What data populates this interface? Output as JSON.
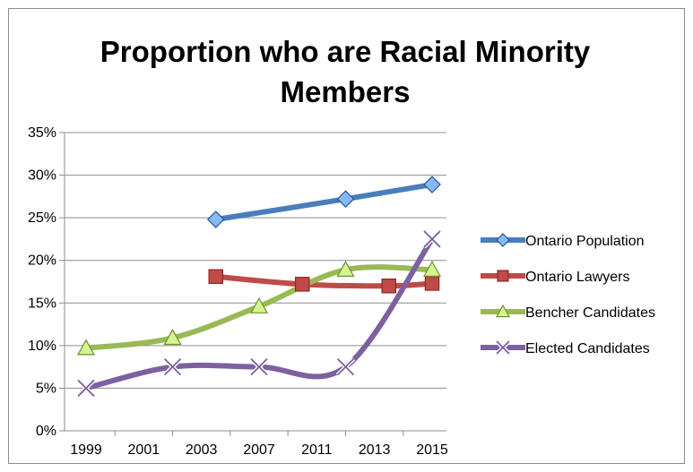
{
  "chart_data": {
    "type": "line",
    "title": "Proportion who are Racial Minority Members",
    "xlabel": "",
    "ylabel": "",
    "x_tick_labels": [
      "1999",
      "2001",
      "2003",
      "2007",
      "2011",
      "2013",
      "2015"
    ],
    "y_tick_labels": [
      "0%",
      "5%",
      "10%",
      "15%",
      "20%",
      "25%",
      "30%",
      "35%"
    ],
    "ylim": [
      0,
      35
    ],
    "grid": "horizontal",
    "legend_position": "right",
    "series": [
      {
        "name": "Ontario Population",
        "color": "#4a7ebb",
        "marker": "diamond",
        "points": [
          {
            "x": 2005,
            "y": 24.8
          },
          {
            "x": 2011,
            "y": 27.2
          },
          {
            "x": 2015,
            "y": 28.9
          }
        ]
      },
      {
        "name": "Ontario Lawyers",
        "color": "#be4b48",
        "marker": "square",
        "points": [
          {
            "x": 2005,
            "y": 18.1
          },
          {
            "x": 2009,
            "y": 17.2
          },
          {
            "x": 2013,
            "y": 17.0
          },
          {
            "x": 2015,
            "y": 17.3
          }
        ]
      },
      {
        "name": "Bencher Candidates",
        "color": "#98b954",
        "marker": "triangle",
        "points": [
          {
            "x": 1999,
            "y": 9.7
          },
          {
            "x": 2003,
            "y": 10.9
          },
          {
            "x": 2007,
            "y": 14.6
          },
          {
            "x": 2011,
            "y": 18.9
          },
          {
            "x": 2015,
            "y": 18.9
          }
        ]
      },
      {
        "name": "Elected Candidates",
        "color": "#7d60a0",
        "marker": "x",
        "points": [
          {
            "x": 1999,
            "y": 5.0
          },
          {
            "x": 2003,
            "y": 7.5
          },
          {
            "x": 2007,
            "y": 7.5
          },
          {
            "x": 2011,
            "y": 7.5
          },
          {
            "x": 2015,
            "y": 22.5
          }
        ]
      }
    ]
  }
}
